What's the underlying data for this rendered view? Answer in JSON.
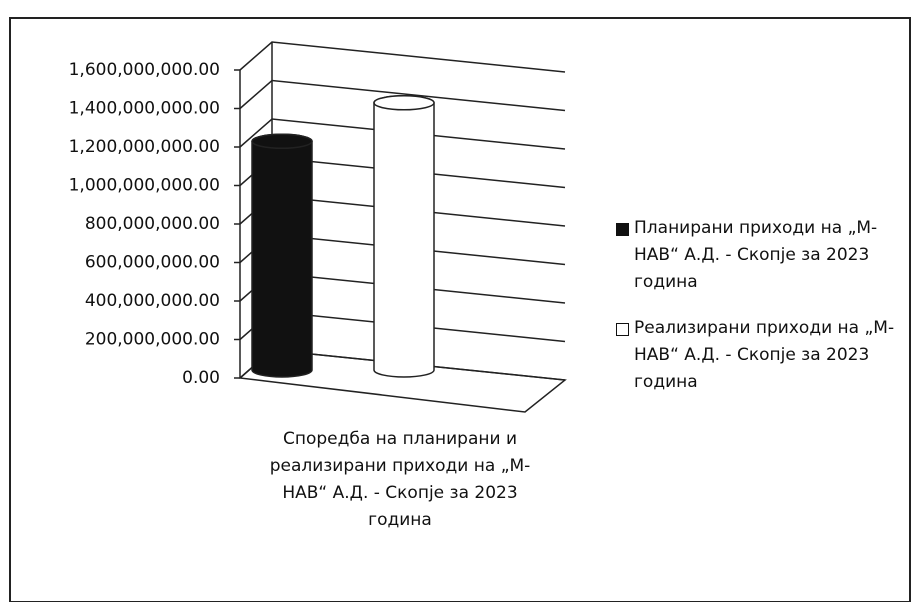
{
  "chart_data": {
    "type": "bar3d",
    "categories": [
      "Споредба на планирани и реализирани приходи на „М-НАВ“ А.Д. - Скопје за 2023 година"
    ],
    "series": [
      {
        "name": "Планирани приходи на „М-НАВ“ А.Д. - Скопје за 2023 година",
        "color": "#111111",
        "values": [
          1240000000
        ]
      },
      {
        "name": "Реализирани приходи на „М-НАВ“ А.Д. - Скопје за 2023 година",
        "color": "#ffffff",
        "values": [
          1440000000
        ]
      }
    ],
    "ylim": [
      0,
      1600000000
    ],
    "yticks": [
      {
        "value": 0,
        "label": "0.00"
      },
      {
        "value": 200000000,
        "label": "200,000,000.00"
      },
      {
        "value": 400000000,
        "label": "400,000,000.00"
      },
      {
        "value": 600000000,
        "label": "600,000,000.00"
      },
      {
        "value": 800000000,
        "label": "800,000,000.00"
      },
      {
        "value": 1000000000,
        "label": "1,000,000,000.00"
      },
      {
        "value": 1200000000,
        "label": "1,200,000,000.00"
      },
      {
        "value": 1400000000,
        "label": "1,400,000,000.00"
      },
      {
        "value": 1600000000,
        "label": "1,600,000,000.00"
      }
    ],
    "grid": true,
    "legend": "right"
  }
}
